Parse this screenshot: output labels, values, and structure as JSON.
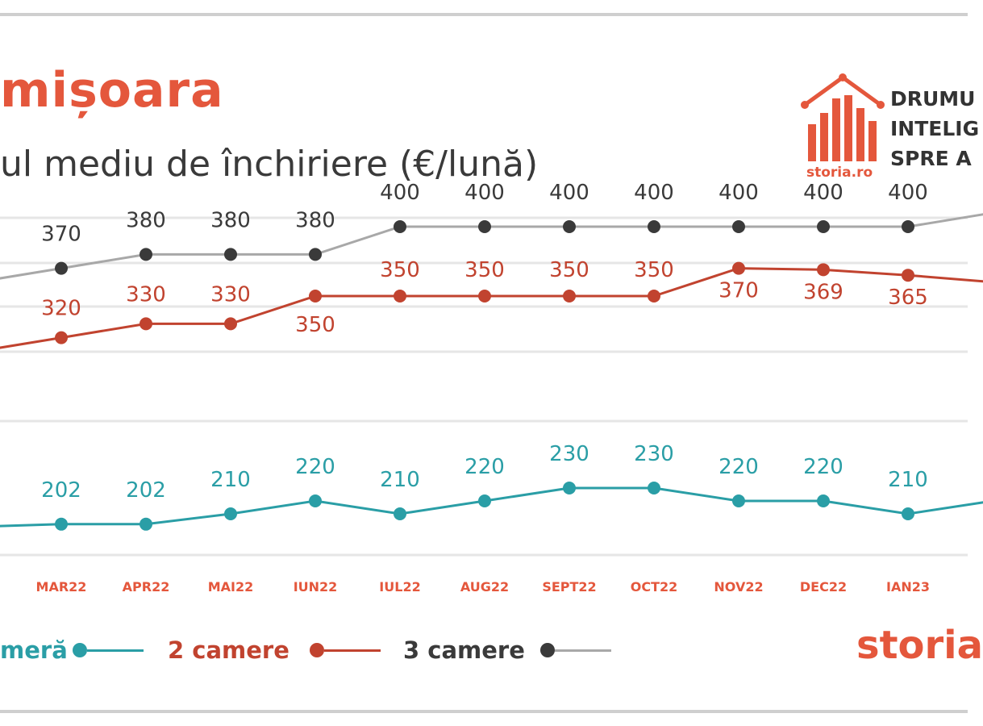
{
  "header": {
    "title": "mișoara",
    "subtitle": "ul mediu de închiriere (€/lună)"
  },
  "logo": {
    "tagline_lines": [
      "DRUMU",
      "INTELIG",
      "SPRE A"
    ],
    "brand_small": "storia.ro",
    "brand_bottom": "storia"
  },
  "colors": {
    "one_room": "#2a9ea6",
    "two_rooms": "#c1432f",
    "three_rooms": "#3a3a3a",
    "three_rooms_line": "#a8a8a8",
    "accent": "#e4573c"
  },
  "legend": [
    {
      "label": "meră",
      "series": "1 cameră"
    },
    {
      "label": "2 camere",
      "series": "2 camere"
    },
    {
      "label": "3 camere",
      "series": "3 camere"
    }
  ],
  "chart_data": {
    "type": "line",
    "categories": [
      "",
      "MAR22",
      "APR22",
      "MAI22",
      "IUN22",
      "IUL22",
      "AUG22",
      "SEPT22",
      "OCT22",
      "NOV22",
      "DEC22",
      "IAN23",
      ""
    ],
    "series": [
      {
        "name": "3 camere",
        "values": [
          null,
          370,
          380,
          380,
          380,
          400,
          400,
          400,
          400,
          400,
          400,
          400,
          null
        ],
        "labels": [
          "",
          "370",
          "380",
          "380",
          "380",
          "400",
          "400",
          "400",
          "400",
          "400",
          "400",
          "400",
          ""
        ]
      },
      {
        "name": "2 camere",
        "values": [
          null,
          320,
          330,
          330,
          350,
          350,
          350,
          350,
          350,
          370,
          369,
          365,
          null
        ],
        "labels": [
          "",
          "320",
          "330",
          "330",
          "350",
          "350",
          "350",
          "350",
          "350",
          "370",
          "369",
          "365",
          ""
        ]
      },
      {
        "name": "1 cameră",
        "values": [
          null,
          202,
          202,
          210,
          220,
          210,
          220,
          230,
          230,
          220,
          220,
          210,
          null
        ],
        "labels": [
          "",
          "202",
          "202",
          "210",
          "220",
          "210",
          "220",
          "230",
          "230",
          "220",
          "220",
          "210",
          ""
        ]
      }
    ],
    "partial_edge_values": {
      "3 camere": {
        "left": 360,
        "right": 410
      },
      "2 camere": {
        "left": 310,
        "right": 360
      },
      "1 cameră": {
        "left": 200,
        "right": 220
      }
    },
    "title": "mișoara",
    "subtitle": "ul mediu de închiriere (€/lună)",
    "grid": true,
    "legend_position": "bottom"
  }
}
